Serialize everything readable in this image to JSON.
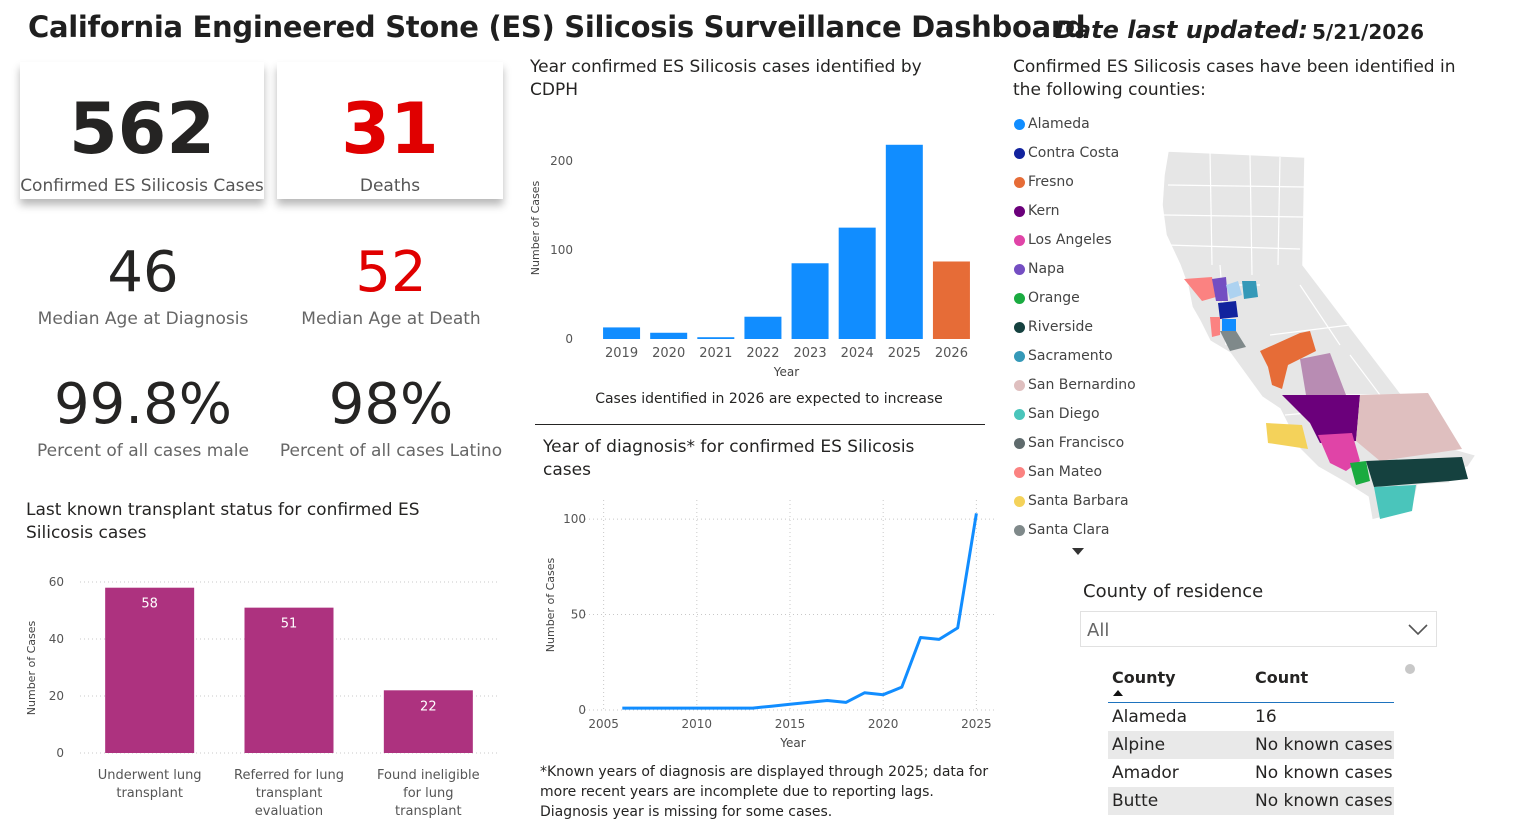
{
  "header": {
    "title": "California Engineered Stone (ES) Silicosis Surveillance Dashboard",
    "updated_label": "Date last updated:",
    "updated_value": "5/21/2026"
  },
  "cards": {
    "cases": {
      "value": "562",
      "label": "Confirmed ES Silicosis Cases"
    },
    "deaths": {
      "value": "31",
      "label": "Deaths"
    }
  },
  "kpis": {
    "median_dx": {
      "value": "46",
      "label": "Median Age at Diagnosis"
    },
    "median_death": {
      "value": "52",
      "label": "Median Age at Death"
    },
    "pct_male": {
      "value": "99.8%",
      "label": "Percent of all cases male"
    },
    "pct_latino": {
      "value": "98%",
      "label": "Percent of all cases Latino"
    }
  },
  "transplant": {
    "title": "Last known transplant status for confirmed ES Silicosis cases"
  },
  "cdph": {
    "title": "Year confirmed ES Silicosis cases identified by CDPH",
    "note": "Cases identified in 2026 are expected to increase"
  },
  "diagnosis": {
    "title": "Year of diagnosis* for confirmed ES Silicosis cases",
    "footnote": "*Known years of diagnosis are displayed through 2025; data for more recent years are incomplete due to reporting lags. Diagnosis year is missing for some cases."
  },
  "map": {
    "title": "Confirmed ES Silicosis cases have been identified in the following counties:",
    "legend": [
      {
        "name": "Alameda",
        "color": "#118DFF"
      },
      {
        "name": "Contra Costa",
        "color": "#12239E"
      },
      {
        "name": "Fresno",
        "color": "#E66C37"
      },
      {
        "name": "Kern",
        "color": "#6B007B"
      },
      {
        "name": "Los Angeles",
        "color": "#E044A7"
      },
      {
        "name": "Napa",
        "color": "#744EC2"
      },
      {
        "name": "Orange",
        "color": "#1AAB40"
      },
      {
        "name": "Riverside",
        "color": "#15413F"
      },
      {
        "name": "Sacramento",
        "color": "#3599B8"
      },
      {
        "name": "San Bernardino",
        "color": "#DFBFBF"
      },
      {
        "name": "San Diego",
        "color": "#4AC5BB"
      },
      {
        "name": "San Francisco",
        "color": "#5F6B6D"
      },
      {
        "name": "San Mateo",
        "color": "#FB8281"
      },
      {
        "name": "Santa Barbara",
        "color": "#F4D25A"
      },
      {
        "name": "Santa Clara",
        "color": "#7F898A"
      }
    ]
  },
  "filter": {
    "title": "County of residence",
    "value": "All"
  },
  "table": {
    "headers": [
      "County",
      "Count"
    ],
    "rows": [
      [
        "Alameda",
        "16"
      ],
      [
        "Alpine",
        "No known cases"
      ],
      [
        "Amador",
        "No known cases"
      ],
      [
        "Butte",
        "No known cases"
      ]
    ]
  },
  "chart_data": [
    {
      "type": "bar",
      "title": "Last known transplant status for confirmed ES Silicosis cases",
      "ylabel": "Number of Cases",
      "xlabel": "",
      "categories": [
        "Underwent lung transplant",
        "Referred for lung transplant evaluation",
        "Found ineligible for lung transplant"
      ],
      "category_lines": [
        [
          "Underwent lung",
          "transplant"
        ],
        [
          "Referred for lung",
          "transplant",
          "evaluation"
        ],
        [
          "Found ineligible",
          "for lung",
          "transplant"
        ]
      ],
      "values": [
        58,
        51,
        22
      ],
      "ylim": [
        0,
        60
      ],
      "yticks": [
        0,
        20,
        40,
        60
      ],
      "color": "#AD327F",
      "grid": true
    },
    {
      "type": "bar",
      "title": "Year confirmed ES Silicosis cases identified by CDPH",
      "ylabel": "Number of Cases",
      "xlabel": "Year",
      "categories": [
        "2019",
        "2020",
        "2021",
        "2022",
        "2023",
        "2024",
        "2025",
        "2026"
      ],
      "values": [
        13,
        7,
        2,
        25,
        85,
        125,
        218,
        87
      ],
      "colors": [
        "#118DFF",
        "#118DFF",
        "#118DFF",
        "#118DFF",
        "#118DFF",
        "#118DFF",
        "#118DFF",
        "#E66C37"
      ],
      "ylim": [
        0,
        220
      ],
      "yticks": [
        0,
        100,
        200
      ],
      "grid": false
    },
    {
      "type": "line",
      "title": "Year of diagnosis* for confirmed ES Silicosis cases",
      "ylabel": "Number of Cases",
      "xlabel": "Year",
      "x": [
        2006,
        2007,
        2008,
        2009,
        2010,
        2011,
        2012,
        2013,
        2014,
        2015,
        2016,
        2017,
        2018,
        2019,
        2020,
        2021,
        2022,
        2023,
        2024,
        2025
      ],
      "y": [
        1,
        1,
        1,
        1,
        1,
        1,
        1,
        1,
        2,
        3,
        4,
        5,
        4,
        9,
        8,
        12,
        38,
        37,
        43,
        103
      ],
      "xlim": [
        2004,
        2026
      ],
      "ylim": [
        0,
        110
      ],
      "xticks": [
        2005,
        2010,
        2015,
        2020,
        2025
      ],
      "yticks": [
        0,
        50,
        100
      ],
      "color": "#118DFF",
      "grid": true
    }
  ]
}
